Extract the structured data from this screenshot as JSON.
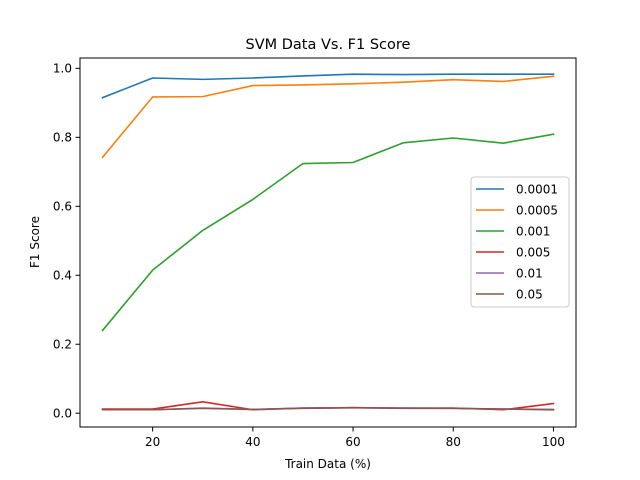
{
  "chart_data": {
    "type": "line",
    "title": "SVM Data Vs. F1 Score",
    "xlabel": "Train Data (%)",
    "ylabel": "F1 Score",
    "xlim": [
      5.5,
      104.5
    ],
    "ylim": [
      -0.04,
      1.03
    ],
    "xticks": [
      20,
      40,
      60,
      80,
      100
    ],
    "yticks": [
      0.0,
      0.2,
      0.4,
      0.6,
      0.8,
      1.0
    ],
    "xtick_labels": [
      "20",
      "40",
      "60",
      "80",
      "100"
    ],
    "ytick_labels": [
      "0.0",
      "0.2",
      "0.4",
      "0.6",
      "0.8",
      "1.0"
    ],
    "grid": false,
    "legend_position": "center-right",
    "x": [
      10,
      20,
      30,
      40,
      50,
      60,
      70,
      80,
      90,
      100
    ],
    "series": [
      {
        "name": "0.0001",
        "color": "#1f77b4",
        "values": [
          0.915,
          0.972,
          0.968,
          0.972,
          0.978,
          0.983,
          0.982,
          0.983,
          0.983,
          0.983
        ]
      },
      {
        "name": "0.0005",
        "color": "#ff7f0e",
        "values": [
          0.742,
          0.917,
          0.918,
          0.95,
          0.952,
          0.955,
          0.96,
          0.967,
          0.962,
          0.977
        ]
      },
      {
        "name": "0.001",
        "color": "#2ca02c",
        "values": [
          0.24,
          0.415,
          0.53,
          0.62,
          0.724,
          0.727,
          0.784,
          0.798,
          0.783,
          0.809
        ]
      },
      {
        "name": "0.005",
        "color": "#d62728",
        "values": [
          0.012,
          0.012,
          0.033,
          0.01,
          0.015,
          0.016,
          0.015,
          0.015,
          0.01,
          0.028
        ]
      },
      {
        "name": "0.01",
        "color": "#9467bd",
        "values": [
          0.01,
          0.01,
          0.015,
          0.011,
          0.015,
          0.016,
          0.015,
          0.014,
          0.012,
          0.011
        ]
      },
      {
        "name": "0.05",
        "color": "#8c564b",
        "values": [
          0.01,
          0.01,
          0.014,
          0.011,
          0.014,
          0.016,
          0.014,
          0.014,
          0.012,
          0.01
        ]
      }
    ]
  }
}
